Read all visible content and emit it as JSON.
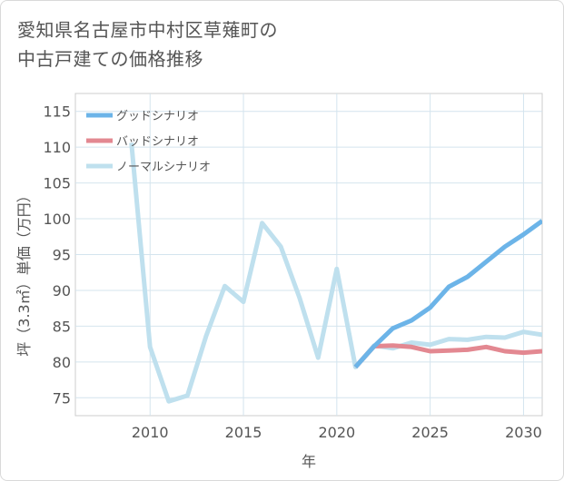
{
  "title_line1": "愛知県名古屋市中村区草薙町の",
  "title_line2": "中古戸建ての価格推移",
  "chart_data": {
    "type": "line",
    "title": "愛知県名古屋市中村区草薙町の中古戸建ての価格推移",
    "xlabel": "年",
    "ylabel": "坪（3.3㎡）単価（万円）",
    "xlim": [
      2006,
      2031
    ],
    "ylim": [
      72.5,
      117.5
    ],
    "xticks": [
      2010,
      2015,
      2020,
      2025,
      2030
    ],
    "yticks": [
      75,
      80,
      85,
      90,
      95,
      100,
      105,
      110,
      115
    ],
    "grid": true,
    "legend_position": "top-left",
    "series": [
      {
        "name": "グッドシナリオ",
        "color": "#6cb4e8",
        "x": [
          2021,
          2022,
          2023,
          2024,
          2025,
          2026,
          2027,
          2028,
          2029,
          2030,
          2031
        ],
        "y": [
          79.3,
          82.2,
          84.7,
          85.8,
          87.6,
          90.5,
          91.9,
          94.0,
          96.1,
          97.8,
          99.7
        ]
      },
      {
        "name": "バッドシナリオ",
        "color": "#e38891",
        "x": [
          2021,
          2022,
          2023,
          2024,
          2025,
          2026,
          2027,
          2028,
          2029,
          2030,
          2031
        ],
        "y": [
          79.3,
          82.2,
          82.3,
          82.1,
          81.5,
          81.6,
          81.7,
          82.1,
          81.5,
          81.3,
          81.5
        ]
      },
      {
        "name": "ノーマルシナリオ",
        "color": "#bfe0ee",
        "x": [
          2009,
          2010,
          2011,
          2012,
          2013,
          2014,
          2015,
          2016,
          2017,
          2018,
          2019,
          2020,
          2021,
          2022,
          2023,
          2024,
          2025,
          2026,
          2027,
          2028,
          2029,
          2030,
          2031
        ],
        "y": [
          110.6,
          82.1,
          74.5,
          75.3,
          83.6,
          90.6,
          88.4,
          99.4,
          96.1,
          89.0,
          80.6,
          93.0,
          79.3,
          82.3,
          81.9,
          82.7,
          82.4,
          83.2,
          83.1,
          83.5,
          83.4,
          84.2,
          83.8
        ]
      }
    ]
  }
}
